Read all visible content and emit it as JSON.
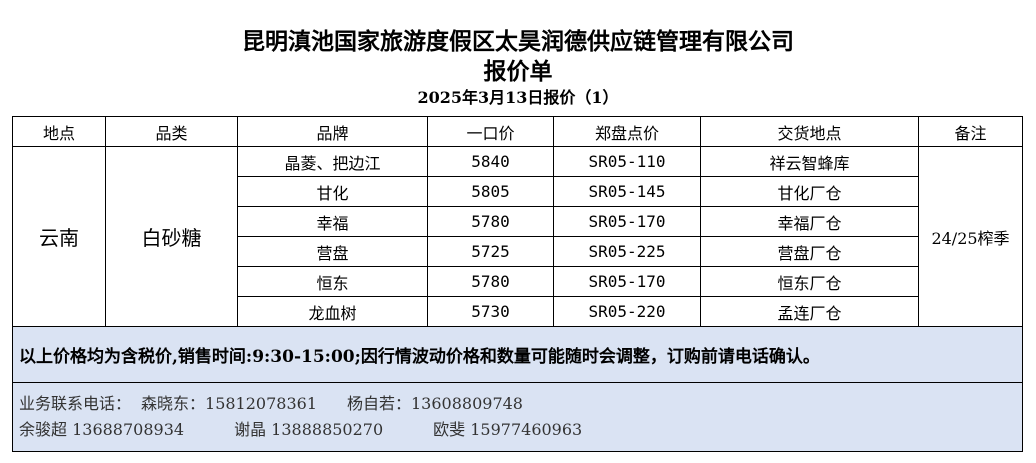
{
  "title": "昆明滇池国家旅游度假区太昊润德供应链管理有限公司",
  "subtitle": "报价单",
  "date_line": "2025年3月13日报价（1）",
  "headers": [
    "地点",
    "品类",
    "品牌",
    "一口价",
    "郑盘点价",
    "交货地点",
    "备注"
  ],
  "location": "云南",
  "category": "白砂糖",
  "remark": "24/25榨季",
  "rows": [
    {
      "brand": "晶菱、把边江",
      "price": "5840",
      "futures": "SR05-110",
      "delivery": "祥云智蜂库"
    },
    {
      "brand": "甘化",
      "price": "5805",
      "futures": "SR05-145",
      "delivery": "甘化厂仓"
    },
    {
      "brand": "幸福",
      "price": "5780",
      "futures": "SR05-170",
      "delivery": "幸福厂仓"
    },
    {
      "brand": "营盘",
      "price": "5725",
      "futures": "SR05-225",
      "delivery": "营盘厂仓"
    },
    {
      "brand": "恒东",
      "price": "5780",
      "futures": "SR05-170",
      "delivery": "恒东厂仓"
    },
    {
      "brand": "龙血树",
      "price": "5730",
      "futures": "SR05-220",
      "delivery": "孟连厂仓"
    }
  ],
  "note": "以上价格均为含税价,销售时间:9:30-15:00;因行情波动价格和数量可能随时会调整，订购前请电话确认。",
  "contacts": {
    "label": "业务联系电话：",
    "c1": "森晓东：15812078361",
    "c2": "杨自若：13608809748",
    "c3": "余骏超 13688708934",
    "c4": "谢晶 13888850270",
    "c5": "欧斐 15977460963"
  }
}
